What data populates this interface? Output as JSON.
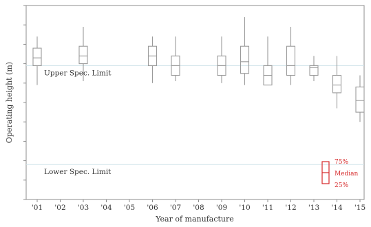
{
  "chart_data": {
    "type": "boxplot",
    "xlabel": "Year of manufacture",
    "ylabel": "Operating height (m)",
    "categories": [
      "'01",
      "'02",
      "'03",
      "'04",
      "'05",
      "'06",
      "'07",
      "'08",
      "'09",
      "'10",
      "'11",
      "'12",
      "'13",
      "'14",
      "'15"
    ],
    "ylim": [
      0,
      100
    ],
    "y_ticks": [
      0,
      10,
      20,
      30,
      40,
      50,
      60,
      70,
      80,
      90,
      100
    ],
    "y_tick_labels_shown": false,
    "grid": false,
    "reference_lines": [
      {
        "label": "Upper Spec. Limit",
        "y": 69,
        "color": "#cfe3ea"
      },
      {
        "label": "Lower Spec. Limit",
        "y": 18,
        "color": "#cfe3ea"
      }
    ],
    "boxes": [
      {
        "category": "'01",
        "min": 59,
        "q1": 69,
        "median": 73,
        "q3": 78,
        "max": 84
      },
      {
        "category": "'03",
        "min": 61,
        "q1": 70,
        "median": 74,
        "q3": 79,
        "max": 89
      },
      {
        "category": "'06",
        "min": 60,
        "q1": 69,
        "median": 74,
        "q3": 79,
        "max": 84
      },
      {
        "category": "'07",
        "min": 61,
        "q1": 64,
        "median": 69,
        "q3": 74,
        "max": 84
      },
      {
        "category": "'09",
        "min": 60,
        "q1": 64,
        "median": 69,
        "q3": 74,
        "max": 84
      },
      {
        "category": "'10",
        "min": 59,
        "q1": 65,
        "median": 71,
        "q3": 79,
        "max": 94
      },
      {
        "category": "'11",
        "min": 59,
        "q1": 59,
        "median": 64,
        "q3": 69,
        "max": 84
      },
      {
        "category": "'12",
        "min": 59,
        "q1": 64,
        "median": 69,
        "q3": 79,
        "max": 89
      },
      {
        "category": "'13",
        "min": 61,
        "q1": 64,
        "median": 68,
        "q3": 69,
        "max": 74
      },
      {
        "category": "'14",
        "min": 47,
        "q1": 55,
        "median": 59,
        "q3": 64,
        "max": 74
      },
      {
        "category": "'15",
        "min": 40,
        "q1": 45,
        "median": 51,
        "q3": 58,
        "max": 64
      }
    ],
    "legend": {
      "placement": "bottom-right",
      "color": "#d62728",
      "q3": "75%",
      "median": "Median",
      "q1": "25%"
    }
  }
}
